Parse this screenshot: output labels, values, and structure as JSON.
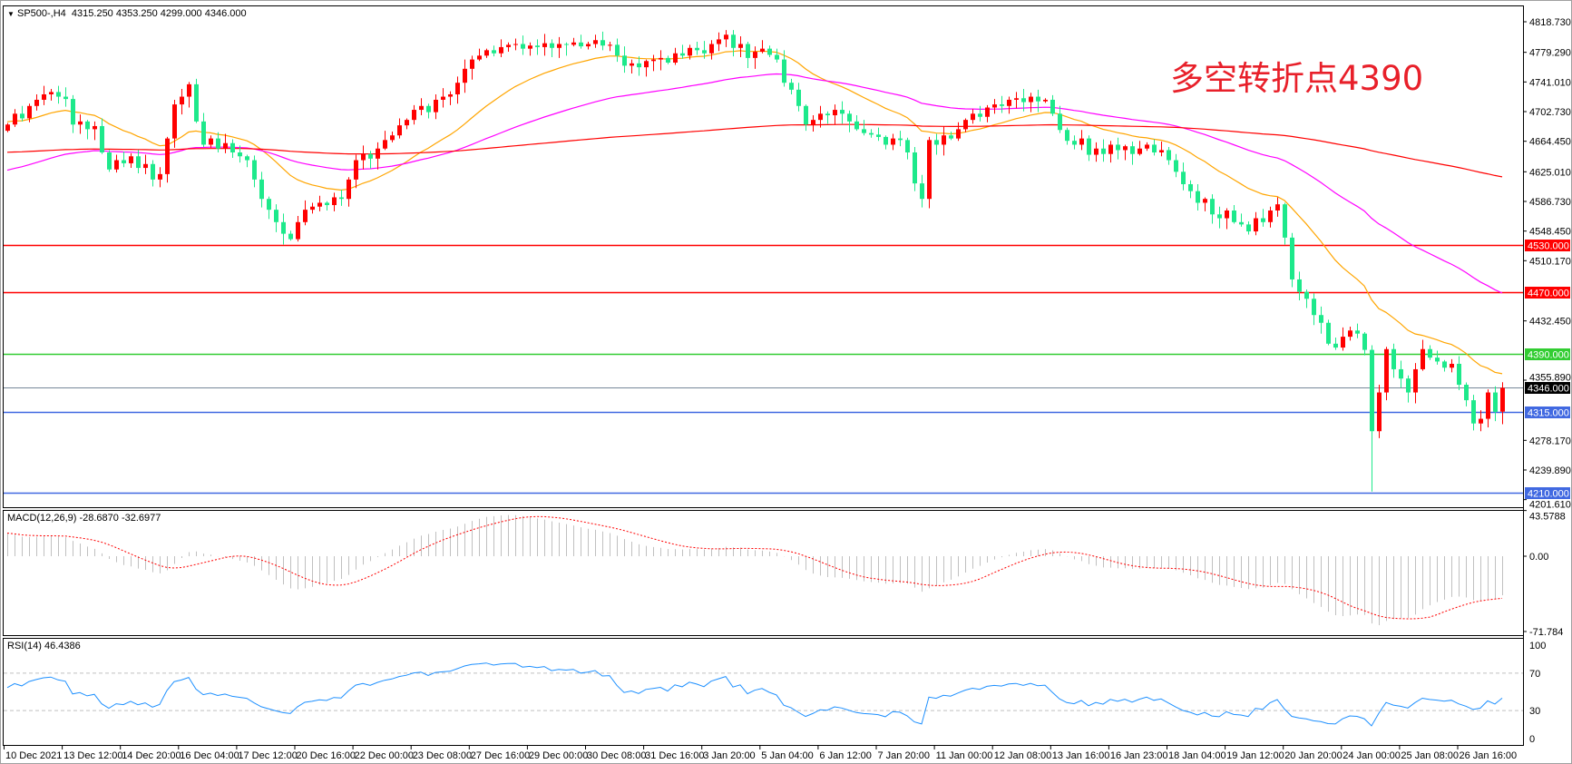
{
  "header": {
    "symbol": "SP500-,H4",
    "ohlc": "4315.250 4353.250 4299.000 4346.000",
    "macd_label": "MACD(12,26,9) -28.6870 -32.6977",
    "rsi_label": "RSI(14) 46.4386"
  },
  "annotation": "多空转折点4390",
  "colors": {
    "up_candle": "#ff0000",
    "down_candle": "#1de98b",
    "ma_fast": "#ffa500",
    "ma_mid": "#ff00ff",
    "ma_slow": "#ff0000",
    "macd_hist": "#c0c0c0",
    "macd_signal": "#ff0000",
    "rsi_line": "#1e90ff",
    "price_line": "#778899"
  },
  "chart_data": {
    "type": "candlestick",
    "symbol": "SP500-",
    "timeframe": "H4",
    "grid": false,
    "ylim": [
      4201.61,
      4818.73
    ],
    "y_ticks": [
      "4818.730",
      "4779.290",
      "4741.010",
      "4702.730",
      "4664.450",
      "4625.010",
      "4586.730",
      "4548.450",
      "4510.170",
      "4432.450",
      "4355.890",
      "4278.170",
      "4239.890",
      "4201.610"
    ],
    "x_ticks": [
      "10 Dec 2021",
      "13 Dec 12:00",
      "14 Dec 20:00",
      "16 Dec 04:00",
      "17 Dec 12:00",
      "20 Dec 16:00",
      "22 Dec 00:00",
      "23 Dec 08:00",
      "27 Dec 16:00",
      "29 Dec 00:00",
      "30 Dec 08:00",
      "31 Dec 16:00",
      "3 Jan 20:00",
      "5 Jan 04:00",
      "6 Jan 12:00",
      "7 Jan 20:00",
      "11 Jan 00:00",
      "12 Jan 08:00",
      "13 Jan 16:00",
      "16 Jan 23:00",
      "18 Jan 04:00",
      "19 Jan 12:00",
      "20 Jan 20:00",
      "24 Jan 00:00",
      "25 Jan 08:00",
      "26 Jan 16:00"
    ],
    "closes": [
      4686,
      4700,
      4694,
      4710,
      4718,
      4725,
      4728,
      4722,
      4719,
      4686,
      4690,
      4680,
      4684,
      4650,
      4628,
      4640,
      4636,
      4645,
      4630,
      4635,
      4615,
      4622,
      4668,
      4712,
      4722,
      4738,
      4690,
      4660,
      4668,
      4655,
      4662,
      4650,
      4645,
      4640,
      4615,
      4590,
      4576,
      4560,
      4545,
      4538,
      4560,
      4576,
      4580,
      4585,
      4582,
      4592,
      4590,
      4615,
      4640,
      4648,
      4642,
      4655,
      4666,
      4672,
      4685,
      4692,
      4705,
      4710,
      4702,
      4718,
      4722,
      4725,
      4740,
      4758,
      4770,
      4775,
      4782,
      4778,
      4786,
      4789,
      4790,
      4784,
      4788,
      4786,
      4791,
      4785,
      4790,
      4789,
      4792,
      4787,
      4790,
      4795,
      4788,
      4789,
      4775,
      4762,
      4765,
      4760,
      4768,
      4770,
      4772,
      4766,
      4778,
      4775,
      4785,
      4782,
      4778,
      4790,
      4796,
      4802,
      4785,
      4790,
      4772,
      4780,
      4784,
      4776,
      4770,
      4740,
      4731,
      4710,
      4686,
      4692,
      4700,
      4698,
      4705,
      4700,
      4690,
      4680,
      4675,
      4673,
      4670,
      4660,
      4668,
      4666,
      4650,
      4610,
      4590,
      4666,
      4660,
      4672,
      4668,
      4680,
      4692,
      4700,
      4696,
      4708,
      4712,
      4710,
      4718,
      4720,
      4715,
      4722,
      4716,
      4718,
      4700,
      4679,
      4665,
      4660,
      4668,
      4647,
      4655,
      4648,
      4660,
      4653,
      4658,
      4648,
      4655,
      4660,
      4650,
      4653,
      4640,
      4625,
      4609,
      4600,
      4585,
      4590,
      4570,
      4565,
      4575,
      4560,
      4557,
      4548,
      4565,
      4560,
      4575,
      4583,
      4540,
      4486,
      4470,
      4461,
      4440,
      4430,
      4403,
      4398,
      4412,
      4420,
      4416,
      4395,
      4290,
      4340,
      4396,
      4370,
      4358,
      4340,
      4370,
      4396,
      4385,
      4380,
      4372,
      4377,
      4350,
      4330,
      4300,
      4306,
      4340,
      4315,
      4346
    ],
    "last_bar": {
      "open": 4315.25,
      "high": 4353.25,
      "low": 4299.0,
      "close": 4346.0
    },
    "period_low": 4212,
    "period_high": 4808,
    "moving_averages": [
      "fast (orange)",
      "mid (magenta)",
      "slow (red)"
    ],
    "levels": [
      {
        "value": 4530,
        "label": "4530.000",
        "color": "#ff0000"
      },
      {
        "value": 4470,
        "label": "4470.000",
        "color": "#ff0000"
      },
      {
        "value": 4390,
        "label": "4390.000",
        "color": "#32cd32"
      },
      {
        "value": 4346,
        "label": "4346.000",
        "color": "#778899",
        "label_bg": "#000000"
      },
      {
        "value": 4315,
        "label": "4315.000",
        "color": "#4169e1"
      },
      {
        "value": 4210,
        "label": "4210.000",
        "color": "#4169e1"
      }
    ],
    "macd": {
      "params": [
        12,
        26,
        9
      ],
      "main": -28.687,
      "signal": -32.6977,
      "ylim": [
        -71.784,
        43.5788
      ],
      "y_ticks": [
        "43.5788",
        "0.00",
        "-71.784"
      ]
    },
    "rsi": {
      "period": 14,
      "value": 46.4386,
      "levels": [
        70,
        30
      ],
      "y_ticks": [
        "100",
        "70",
        "30",
        "0"
      ]
    }
  }
}
